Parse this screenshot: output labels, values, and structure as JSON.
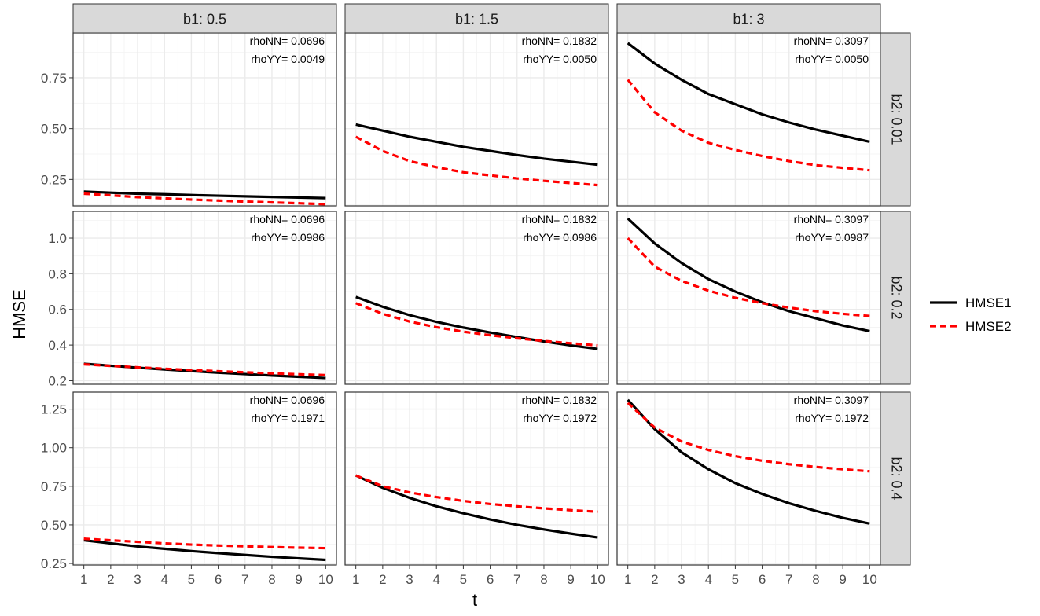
{
  "chart_data": {
    "type": "line",
    "xlabel": "t",
    "ylabel": "HMSE",
    "x": [
      1,
      2,
      3,
      4,
      5,
      6,
      7,
      8,
      9,
      10
    ],
    "xlim": [
      0.6,
      10.4
    ],
    "x_ticks": [
      1,
      2,
      3,
      4,
      5,
      6,
      7,
      8,
      9,
      10
    ],
    "grid": true,
    "legend_position": "right",
    "colors": {
      "HMSE1": "#000000",
      "HMSE2": "#ff0000",
      "strip_bg": "#d9d9d9",
      "grid": "#ebebeb"
    },
    "legend": [
      {
        "name": "HMSE1",
        "color": "#000000",
        "dash": "solid"
      },
      {
        "name": "HMSE2",
        "color": "#ff0000",
        "dash": "dashed"
      }
    ],
    "col_strips": [
      "b1: 0.5",
      "b1: 1.5",
      "b1: 3"
    ],
    "row_strips": [
      "b2: 0.01",
      "b2: 0.2",
      "b2: 0.4"
    ],
    "rows": [
      {
        "ylim": [
          0.12,
          0.97
        ],
        "y_ticks": [
          0.25,
          0.5,
          0.75
        ],
        "y_tick_labels": [
          "0.25",
          "0.50",
          "0.75"
        ]
      },
      {
        "ylim": [
          0.18,
          1.15
        ],
        "y_ticks": [
          0.2,
          0.4,
          0.6,
          0.8,
          1.0
        ],
        "y_tick_labels": [
          "0.2",
          "0.4",
          "0.6",
          "0.8",
          "1.0"
        ]
      },
      {
        "ylim": [
          0.24,
          1.36
        ],
        "y_ticks": [
          0.25,
          0.5,
          0.75,
          1.0,
          1.25
        ],
        "y_tick_labels": [
          "0.25",
          "0.50",
          "0.75",
          "1.00",
          "1.25"
        ]
      }
    ],
    "panels": [
      {
        "row": 0,
        "col": 0,
        "annotations": [
          "rhoNN= 0.0696",
          "rhoYY= 0.0049"
        ],
        "series": [
          {
            "name": "HMSE1",
            "values": [
              0.19,
              0.185,
              0.18,
              0.177,
              0.173,
              0.17,
              0.167,
              0.164,
              0.161,
              0.158
            ]
          },
          {
            "name": "HMSE2",
            "values": [
              0.18,
              0.172,
              0.163,
              0.157,
              0.151,
              0.146,
              0.141,
              0.137,
              0.133,
              0.128
            ]
          }
        ]
      },
      {
        "row": 0,
        "col": 1,
        "annotations": [
          "rhoNN= 0.1832",
          "rhoYY= 0.0050"
        ],
        "series": [
          {
            "name": "HMSE1",
            "values": [
              0.52,
              0.49,
              0.46,
              0.435,
              0.41,
              0.39,
              0.37,
              0.352,
              0.337,
              0.322
            ]
          },
          {
            "name": "HMSE2",
            "values": [
              0.46,
              0.39,
              0.34,
              0.31,
              0.285,
              0.27,
              0.255,
              0.243,
              0.232,
              0.222
            ]
          }
        ]
      },
      {
        "row": 0,
        "col": 2,
        "annotations": [
          "rhoNN= 0.3097",
          "rhoYY= 0.0050"
        ],
        "series": [
          {
            "name": "HMSE1",
            "values": [
              0.92,
              0.82,
              0.74,
              0.67,
              0.62,
              0.57,
              0.53,
              0.495,
              0.465,
              0.435
            ]
          },
          {
            "name": "HMSE2",
            "values": [
              0.74,
              0.58,
              0.49,
              0.43,
              0.395,
              0.365,
              0.34,
              0.32,
              0.307,
              0.295
            ]
          }
        ]
      },
      {
        "row": 1,
        "col": 0,
        "annotations": [
          "rhoNN= 0.0696",
          "rhoYY= 0.0986"
        ],
        "series": [
          {
            "name": "HMSE1",
            "values": [
              0.295,
              0.284,
              0.273,
              0.263,
              0.254,
              0.245,
              0.237,
              0.229,
              0.222,
              0.215
            ]
          },
          {
            "name": "HMSE2",
            "values": [
              0.292,
              0.283,
              0.275,
              0.267,
              0.26,
              0.253,
              0.247,
              0.241,
              0.236,
              0.231
            ]
          }
        ]
      },
      {
        "row": 1,
        "col": 1,
        "annotations": [
          "rhoNN= 0.1832",
          "rhoYY= 0.0986"
        ],
        "series": [
          {
            "name": "HMSE1",
            "values": [
              0.67,
              0.615,
              0.568,
              0.53,
              0.498,
              0.47,
              0.445,
              0.42,
              0.398,
              0.378
            ]
          },
          {
            "name": "HMSE2",
            "values": [
              0.635,
              0.575,
              0.532,
              0.5,
              0.475,
              0.455,
              0.438,
              0.423,
              0.41,
              0.398
            ]
          }
        ]
      },
      {
        "row": 1,
        "col": 2,
        "annotations": [
          "rhoNN= 0.3097",
          "rhoYY= 0.0987"
        ],
        "series": [
          {
            "name": "HMSE1",
            "values": [
              1.11,
              0.97,
              0.86,
              0.77,
              0.7,
              0.64,
              0.59,
              0.55,
              0.51,
              0.478
            ]
          },
          {
            "name": "HMSE2",
            "values": [
              1.0,
              0.84,
              0.76,
              0.705,
              0.665,
              0.635,
              0.61,
              0.59,
              0.575,
              0.563
            ]
          }
        ]
      },
      {
        "row": 2,
        "col": 0,
        "annotations": [
          "rhoNN= 0.0696",
          "rhoYY= 0.1971"
        ],
        "series": [
          {
            "name": "HMSE1",
            "values": [
              0.4,
              0.38,
              0.36,
              0.345,
              0.33,
              0.317,
              0.305,
              0.293,
              0.283,
              0.273
            ]
          },
          {
            "name": "HMSE2",
            "values": [
              0.41,
              0.4,
              0.39,
              0.38,
              0.372,
              0.366,
              0.361,
              0.356,
              0.352,
              0.349
            ]
          }
        ]
      },
      {
        "row": 2,
        "col": 1,
        "annotations": [
          "rhoNN= 0.1832",
          "rhoYY= 0.1972"
        ],
        "series": [
          {
            "name": "HMSE1",
            "values": [
              0.82,
              0.74,
              0.675,
              0.62,
              0.575,
              0.535,
              0.5,
              0.47,
              0.443,
              0.418
            ]
          },
          {
            "name": "HMSE2",
            "values": [
              0.82,
              0.75,
              0.71,
              0.68,
              0.655,
              0.635,
              0.62,
              0.607,
              0.595,
              0.585
            ]
          }
        ]
      },
      {
        "row": 2,
        "col": 2,
        "annotations": [
          "rhoNN= 0.3097",
          "rhoYY= 0.1972"
        ],
        "series": [
          {
            "name": "HMSE1",
            "values": [
              1.31,
              1.12,
              0.97,
              0.86,
              0.77,
              0.7,
              0.64,
              0.59,
              0.545,
              0.508
            ]
          },
          {
            "name": "HMSE2",
            "values": [
              1.29,
              1.13,
              1.04,
              0.985,
              0.945,
              0.915,
              0.893,
              0.875,
              0.86,
              0.847
            ]
          }
        ]
      }
    ]
  }
}
